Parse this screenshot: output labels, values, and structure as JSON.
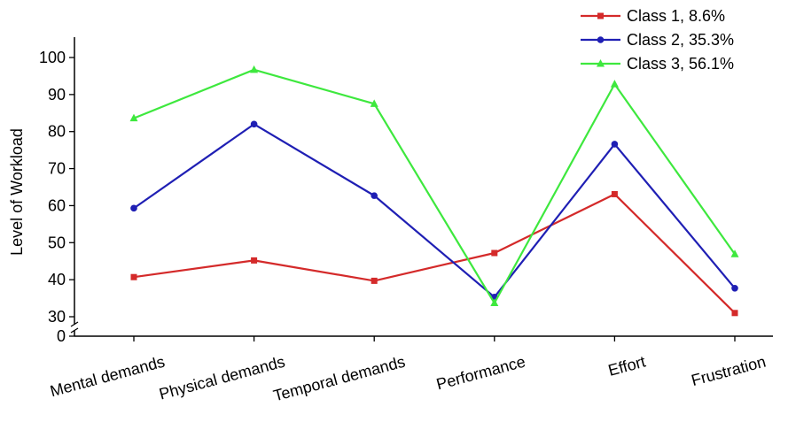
{
  "chart_data": {
    "type": "line",
    "title": "",
    "xlabel": "",
    "ylabel": "Level of Workload",
    "categories": [
      "Mental demands",
      "Physical demands",
      "Temporal demands",
      "Performance",
      "Effort",
      "Frustration"
    ],
    "y_ticks": [
      0,
      30,
      40,
      50,
      60,
      70,
      80,
      90,
      100
    ],
    "ylim": [
      30,
      100
    ],
    "axis_break": true,
    "grid": false,
    "legend_position": "top-right",
    "series": [
      {
        "name": "Class 1, 8.6%",
        "color": "#d42a2a",
        "marker": "square",
        "values": [
          40.7,
          45.2,
          39.7,
          47.2,
          63.1,
          31.0
        ]
      },
      {
        "name": "Class 2, 35.3%",
        "color": "#1f1fb4",
        "marker": "circle",
        "values": [
          59.3,
          82.0,
          62.7,
          35.3,
          76.6,
          37.7
        ]
      },
      {
        "name": "Class 3, 56.1%",
        "color": "#3ee83e",
        "marker": "triangle",
        "values": [
          83.6,
          96.7,
          87.5,
          33.7,
          92.8,
          46.9
        ]
      }
    ]
  }
}
